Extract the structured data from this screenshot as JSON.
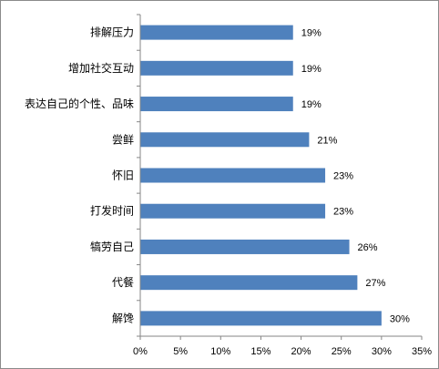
{
  "chart_data": {
    "type": "bar",
    "orientation": "horizontal",
    "categories": [
      "排解压力",
      "增加社交互动",
      "表达自己的个性、品味",
      "尝鲜",
      "怀旧",
      "打发时间",
      "犒劳自己",
      "代餐",
      "解馋"
    ],
    "values": [
      19,
      19,
      19,
      21,
      23,
      23,
      26,
      27,
      30
    ],
    "data_labels": [
      "19%",
      "19%",
      "19%",
      "21%",
      "23%",
      "23%",
      "26%",
      "27%",
      "30%"
    ],
    "value_unit": "%",
    "xlim": [
      0,
      35
    ],
    "x_ticks": [
      0,
      5,
      10,
      15,
      20,
      25,
      30,
      35
    ],
    "x_tick_labels": [
      "0%",
      "5%",
      "10%",
      "15%",
      "20%",
      "25%",
      "30%",
      "35%"
    ],
    "title": "",
    "xlabel": "",
    "ylabel": "",
    "grid": false,
    "legend": "none",
    "bar_color": "#4F81BD"
  }
}
